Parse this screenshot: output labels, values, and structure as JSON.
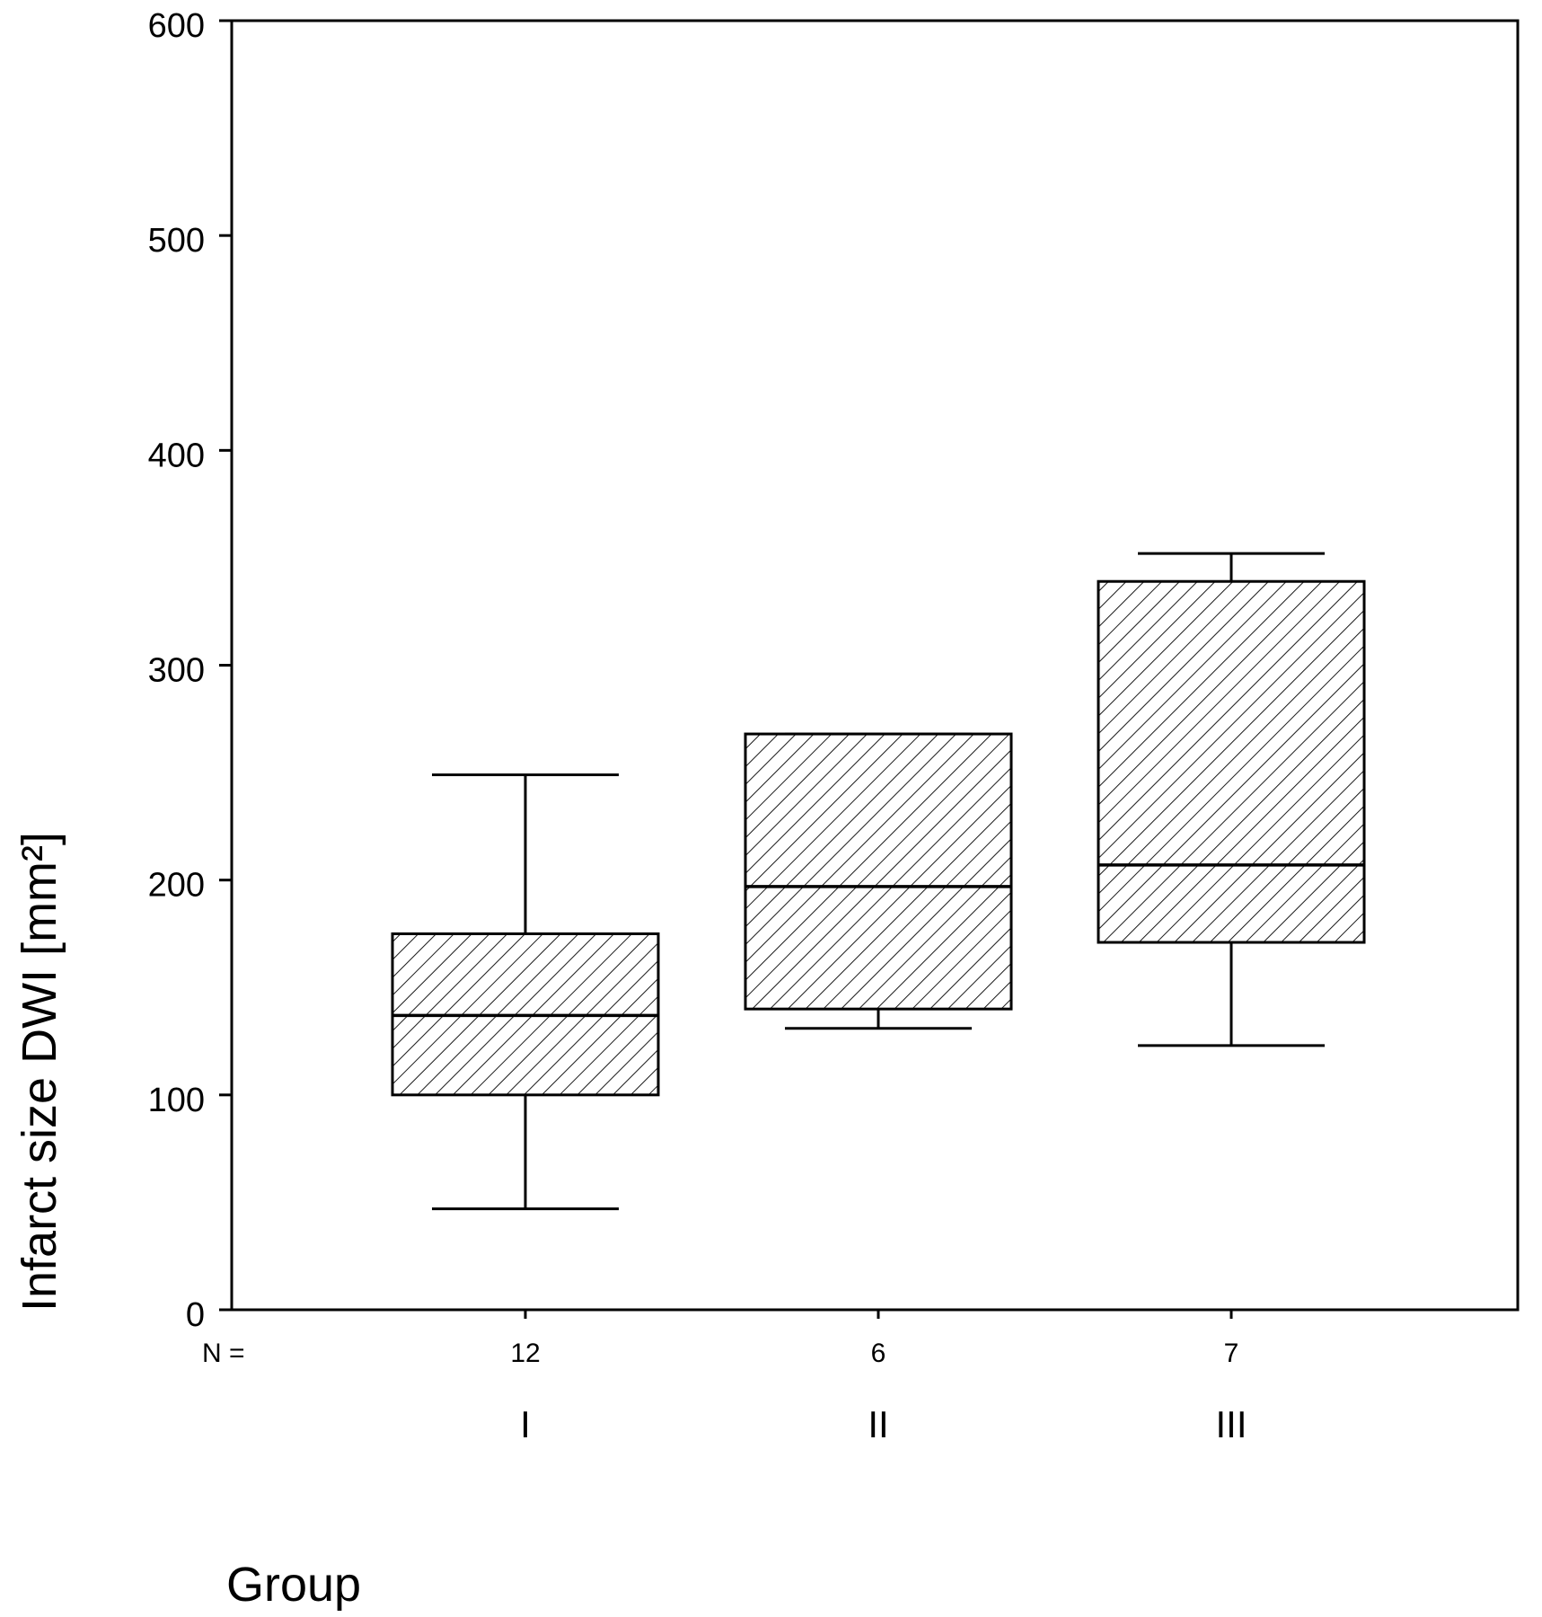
{
  "chart_data": {
    "type": "box",
    "ylabel": "Infarct size DWI [mm²]",
    "xlabel": "Group",
    "ylim": [
      0,
      600
    ],
    "yticks": [
      0,
      100,
      200,
      300,
      400,
      500,
      600
    ],
    "n_prefix": "N =",
    "grid": false,
    "fill_pattern": "diagonal-hatch",
    "categories": [
      "I",
      "II",
      "III"
    ],
    "n": [
      "12",
      "6",
      "7"
    ],
    "boxes": [
      {
        "group": "I",
        "whisker_low": 47,
        "q1": 100,
        "median": 137,
        "q3": 175,
        "whisker_high": 249
      },
      {
        "group": "II",
        "whisker_low": 131,
        "q1": 140,
        "median": 197,
        "q3": 268,
        "whisker_high": 268
      },
      {
        "group": "III",
        "whisker_low": 123,
        "q1": 171,
        "median": 207,
        "q3": 339,
        "whisker_high": 352
      }
    ]
  }
}
